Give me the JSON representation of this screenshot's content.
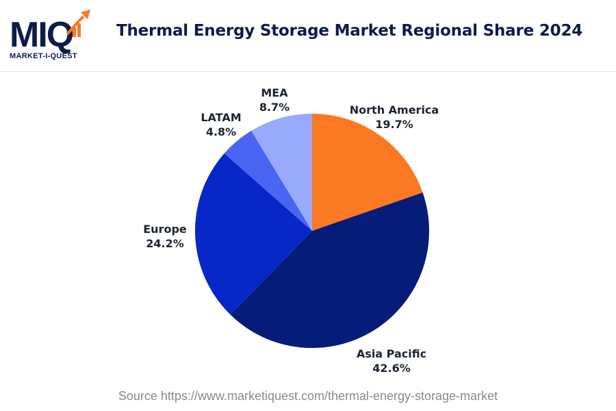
{
  "logo": {
    "mark": "MIQ",
    "text": "MARKET-I-QUEST",
    "icon": "rising-arrow-chart-icon",
    "colors": {
      "navy": "#0d1b4c",
      "orange": "#f47920"
    }
  },
  "chart_data": {
    "type": "pie",
    "title": "Thermal Energy Storage Market Regional Share 2024",
    "slices": [
      {
        "name": "North America",
        "value": 19.7,
        "label": "19.7%",
        "color": "#fb7923"
      },
      {
        "name": "Asia Pacific",
        "value": 42.6,
        "label": "42.6%",
        "color": "#071b78"
      },
      {
        "name": "Europe",
        "value": 24.2,
        "label": "24.2%",
        "color": "#0727c9"
      },
      {
        "name": "LATAM",
        "value": 4.8,
        "label": "4.8%",
        "color": "#4a65f2"
      },
      {
        "name": "MEA",
        "value": 8.7,
        "label": "8.7%",
        "color": "#99aafc"
      }
    ],
    "legend": "none"
  },
  "source": "Source https://www.marketiquest.com/thermal-energy-storage-market"
}
